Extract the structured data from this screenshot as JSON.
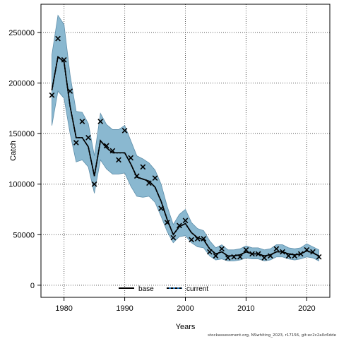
{
  "footer_note": "stockassessment.org, NSwhiting_2023, r17156, git:ec2c2a0c6dde",
  "chart_data": {
    "type": "line",
    "xlabel": "Years",
    "ylabel": "Catch",
    "xlim": [
      1976.2,
      2023.8
    ],
    "ylim": [
      -12000,
      278000
    ],
    "x_ticks": [
      1980,
      1990,
      2000,
      2010,
      2020
    ],
    "y_ticks": [
      0,
      50000,
      100000,
      150000,
      200000,
      250000
    ],
    "x_tick_labels": [
      "1980",
      "1990",
      "2000",
      "2010",
      "2020"
    ],
    "y_tick_labels": [
      "0",
      "50000",
      "100000",
      "150000",
      "200000",
      "250000"
    ],
    "grid": true,
    "legend": {
      "position": "bottom-center",
      "entries": [
        {
          "label": "base",
          "style": "solid",
          "color": "#000000"
        },
        {
          "label": "current",
          "style": "dashed",
          "color": "#000000",
          "dash_color": "#1f6fb5"
        }
      ]
    },
    "band_color": "#8ab8d0",
    "band_edge_color": "#5f8fab",
    "years": [
      1978,
      1979,
      1980,
      1981,
      1982,
      1983,
      1984,
      1985,
      1986,
      1987,
      1988,
      1989,
      1990,
      1991,
      1992,
      1993,
      1994,
      1995,
      1996,
      1997,
      1998,
      1999,
      2000,
      2001,
      2002,
      2003,
      2004,
      2005,
      2006,
      2007,
      2008,
      2009,
      2010,
      2011,
      2012,
      2013,
      2014,
      2015,
      2016,
      2017,
      2018,
      2019,
      2020,
      2021,
      2022
    ],
    "series": [
      {
        "name": "base",
        "kind": "estimate",
        "values": [
          193000,
          226000,
          221000,
          177000,
          146000,
          146000,
          137000,
          108000,
          143000,
          136000,
          131000,
          131000,
          131000,
          120000,
          107000,
          105000,
          103000,
          97000,
          83000,
          65000,
          50000,
          58000,
          61000,
          52000,
          47000,
          45000,
          36000,
          31000,
          33000,
          29000,
          29000,
          30000,
          33000,
          31000,
          31000,
          29000,
          30000,
          33000,
          33000,
          31000,
          30000,
          31000,
          34000,
          32000,
          29000
        ],
        "lower": [
          158000,
          192000,
          185000,
          150000,
          122000,
          124000,
          117000,
          91000,
          124000,
          115000,
          110000,
          110000,
          111000,
          98000,
          88000,
          87000,
          88000,
          82000,
          68000,
          53000,
          42000,
          48000,
          49000,
          42000,
          38000,
          37000,
          29000,
          25000,
          26000,
          24000,
          24000,
          25000,
          27000,
          26000,
          26000,
          24000,
          25000,
          28000,
          28000,
          26000,
          25000,
          26000,
          28000,
          27000,
          24000
        ],
        "upper": [
          228000,
          267000,
          258000,
          208000,
          172000,
          171000,
          160000,
          128000,
          170000,
          159000,
          154000,
          154000,
          158000,
          143000,
          128000,
          125000,
          121000,
          114000,
          100000,
          78000,
          60000,
          70000,
          75000,
          62000,
          56000,
          54000,
          44000,
          37000,
          40000,
          35000,
          35000,
          36000,
          39000,
          37000,
          37000,
          35000,
          36000,
          40000,
          40000,
          37000,
          36000,
          37000,
          41000,
          38000,
          35000
        ]
      },
      {
        "name": "current",
        "kind": "observed",
        "values": [
          188000,
          244000,
          223000,
          192000,
          141000,
          162000,
          146000,
          100000,
          162000,
          138000,
          133000,
          124000,
          153000,
          126000,
          108000,
          117000,
          101000,
          106000,
          76000,
          62000,
          47000,
          59000,
          64000,
          45000,
          46000,
          46000,
          33000,
          29000,
          36000,
          27000,
          28000,
          28000,
          35000,
          31000,
          31000,
          27000,
          29000,
          36000,
          33000,
          29000,
          29000,
          31000,
          35000,
          33000,
          28000
        ]
      }
    ]
  }
}
